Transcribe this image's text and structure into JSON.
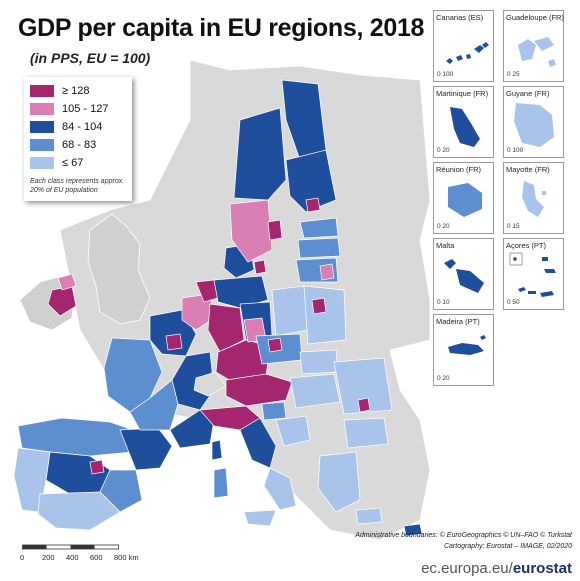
{
  "title": "GDP per capita in EU regions, 2018",
  "subtitle": "(in PPS, EU = 100)",
  "legend": {
    "classes": [
      {
        "label": "≥ 128",
        "color": "#a3266f"
      },
      {
        "label": "105 - 127",
        "color": "#d97fb3"
      },
      {
        "label": "84 - 104",
        "color": "#1f4e9c"
      },
      {
        "label": "68 - 83",
        "color": "#5c8ed0"
      },
      {
        "label": "≤ 67",
        "color": "#a9c4ea"
      }
    ],
    "note": "Each class represents approx. 20% of EU population"
  },
  "insets": [
    {
      "name": "Canarias (ES)",
      "scale": "0   100"
    },
    {
      "name": "Guadeloupe (FR)",
      "scale": "0   25"
    },
    {
      "name": "Martinique (FR)",
      "scale": "0   20"
    },
    {
      "name": "Guyane (FR)",
      "scale": "0   100"
    },
    {
      "name": "Réunion (FR)",
      "scale": "0   20"
    },
    {
      "name": "Mayotte (FR)",
      "scale": "0   15"
    },
    {
      "name": "Malta",
      "scale": "0   10"
    },
    {
      "name": "Açores (PT)",
      "scale": "0   50"
    },
    {
      "name": "Madeira (PT)",
      "scale": "0   20"
    }
  ],
  "scalebar": {
    "ticks": [
      "0",
      "200",
      "400",
      "600",
      "800 km"
    ]
  },
  "credits": {
    "line1": "Administrative boundaries: © EuroGeographics © UN–FAO © Turkstat",
    "line2": "Cartography: Eurostat – IMAGE, 02/2020"
  },
  "footer": {
    "site": "ec.europa.eu/",
    "brand": "eurostat"
  },
  "colors": {
    "sea": "#ffffff",
    "non_eu_land": "#d9d9d9",
    "borders": "#ffffff"
  }
}
